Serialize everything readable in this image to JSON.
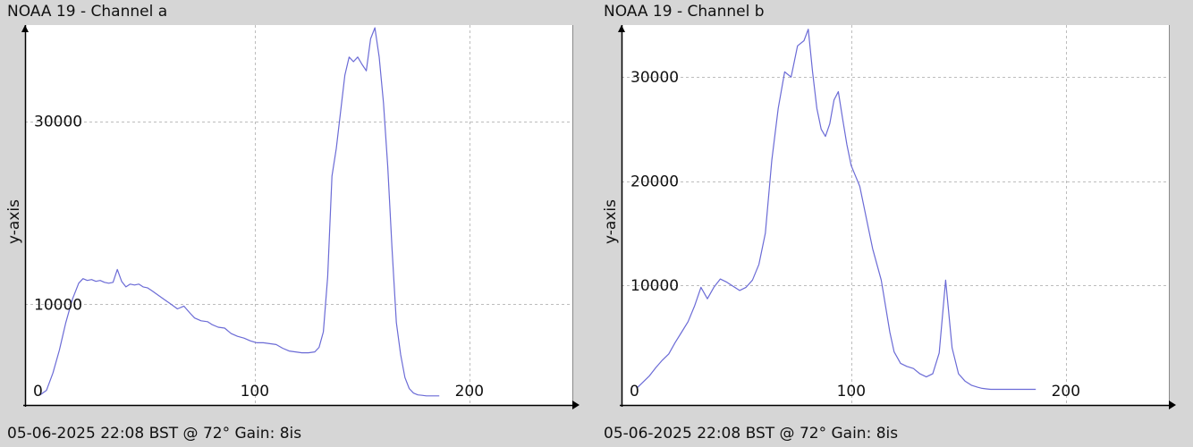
{
  "chart_data": [
    {
      "type": "line",
      "title": "NOAA 19 - Channel a",
      "footer": "05-06-2025 22:08 BST @ 72° Gain: 8",
      "footer_suffix": "is",
      "xlabel": "",
      "ylabel": "y-axis",
      "xlim": [
        -7,
        248
      ],
      "ylim": [
        -1000,
        40500
      ],
      "xticks": [
        0,
        100,
        200
      ],
      "yticks": [
        10000,
        30000
      ],
      "grid": true,
      "line_color": "#6b6bd6",
      "series": [
        {
          "x": [
            0,
            3,
            6,
            9,
            12,
            15,
            18,
            20,
            22,
            24,
            26,
            28,
            30,
            32,
            34,
            36,
            38,
            40,
            42,
            44,
            46,
            48,
            50,
            52,
            55,
            58,
            61,
            64,
            67,
            70,
            72,
            75,
            78,
            80,
            83,
            86,
            89,
            92,
            95,
            98,
            101,
            104,
            107,
            110,
            113,
            116,
            119,
            122,
            125,
            128,
            130,
            132,
            134,
            136,
            138,
            140,
            142,
            144,
            146,
            148,
            150,
            152,
            154,
            156,
            158,
            160,
            162,
            164,
            166,
            168,
            170,
            172,
            174,
            176,
            178,
            180,
            183,
            186
          ],
          "y": [
            100,
            600,
            2500,
            5000,
            8000,
            10500,
            12300,
            12800,
            12600,
            12700,
            12500,
            12600,
            12400,
            12300,
            12400,
            13800,
            12500,
            11900,
            12200,
            12100,
            12200,
            11900,
            11800,
            11500,
            11000,
            10500,
            10000,
            9500,
            9800,
            9000,
            8500,
            8200,
            8100,
            7800,
            7500,
            7400,
            6800,
            6500,
            6300,
            6000,
            5800,
            5800,
            5700,
            5600,
            5200,
            4900,
            4800,
            4700,
            4700,
            4800,
            5300,
            7000,
            13000,
            24000,
            27000,
            31000,
            35000,
            37000,
            36500,
            37000,
            36200,
            35500,
            39000,
            40200,
            37000,
            32000,
            25000,
            16000,
            8000,
            4500,
            2000,
            800,
            300,
            100,
            50,
            0,
            0,
            0
          ]
        }
      ]
    },
    {
      "type": "line",
      "title": "NOAA 19 - Channel b",
      "footer": "05-06-2025 22:08 BST @ 72° Gain: 8",
      "footer_suffix": "is",
      "xlabel": "",
      "ylabel": "y-axis",
      "xlim": [
        -7,
        248
      ],
      "ylim": [
        -1500,
        35000
      ],
      "xticks": [
        0,
        100,
        200
      ],
      "yticks": [
        10000,
        20000,
        30000
      ],
      "grid": true,
      "line_color": "#6b6bd6",
      "series": [
        {
          "x": [
            0,
            3,
            6,
            9,
            12,
            15,
            18,
            21,
            24,
            27,
            30,
            33,
            36,
            39,
            42,
            45,
            48,
            51,
            54,
            57,
            60,
            63,
            66,
            69,
            72,
            75,
            78,
            80,
            82,
            84,
            86,
            88,
            90,
            92,
            94,
            96,
            98,
            100,
            102,
            104,
            106,
            108,
            110,
            112,
            114,
            116,
            118,
            120,
            123,
            126,
            129,
            132,
            135,
            138,
            141,
            144,
            147,
            150,
            153,
            156,
            159,
            161,
            163,
            165,
            167,
            169,
            171,
            173,
            175,
            178,
            182,
            186
          ],
          "y": [
            100,
            700,
            1300,
            2100,
            2800,
            3400,
            4500,
            5500,
            6500,
            8000,
            9800,
            8700,
            9800,
            10600,
            10300,
            9900,
            9500,
            9800,
            10500,
            12000,
            15000,
            22000,
            27000,
            30500,
            30000,
            33000,
            33500,
            34600,
            30500,
            27000,
            25000,
            24300,
            25500,
            27800,
            28600,
            26000,
            23500,
            21500,
            20500,
            19500,
            17500,
            15500,
            13500,
            12000,
            10500,
            8000,
            5500,
            3600,
            2500,
            2200,
            2000,
            1500,
            1200,
            1500,
            3500,
            10500,
            4000,
            1500,
            800,
            400,
            200,
            100,
            50,
            0,
            0,
            0,
            0,
            0,
            0,
            0,
            0,
            0
          ]
        }
      ]
    }
  ]
}
